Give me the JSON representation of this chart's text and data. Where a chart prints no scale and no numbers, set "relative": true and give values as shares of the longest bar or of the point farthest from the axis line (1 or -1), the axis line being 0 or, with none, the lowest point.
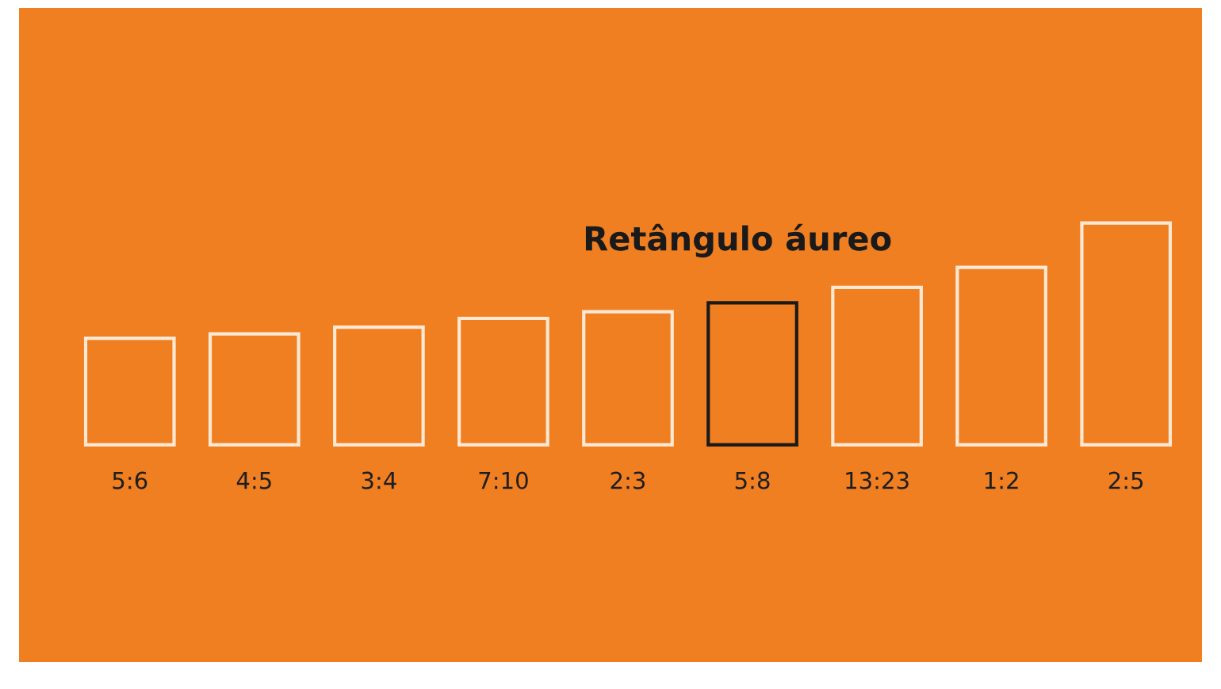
{
  "chart_data": {
    "type": "bar",
    "title": "Retângulo áureo",
    "relative": true,
    "categories": [
      "5:6",
      "4:5",
      "3:4",
      "7:10",
      "2:3",
      "5:8",
      "13:23",
      "1:2",
      "2:5"
    ],
    "values": [
      0.48,
      0.5,
      0.53,
      0.57,
      0.6,
      0.64,
      0.71,
      0.8,
      1
    ],
    "colors": [
      "#fde8d4",
      "#fde8d4",
      "#fde8d4",
      "#fde8d4",
      "#fde8d4",
      "#1a1a1a",
      "#fde8d4",
      "#fde8d4",
      "#fde8d4"
    ],
    "legend": false
  }
}
